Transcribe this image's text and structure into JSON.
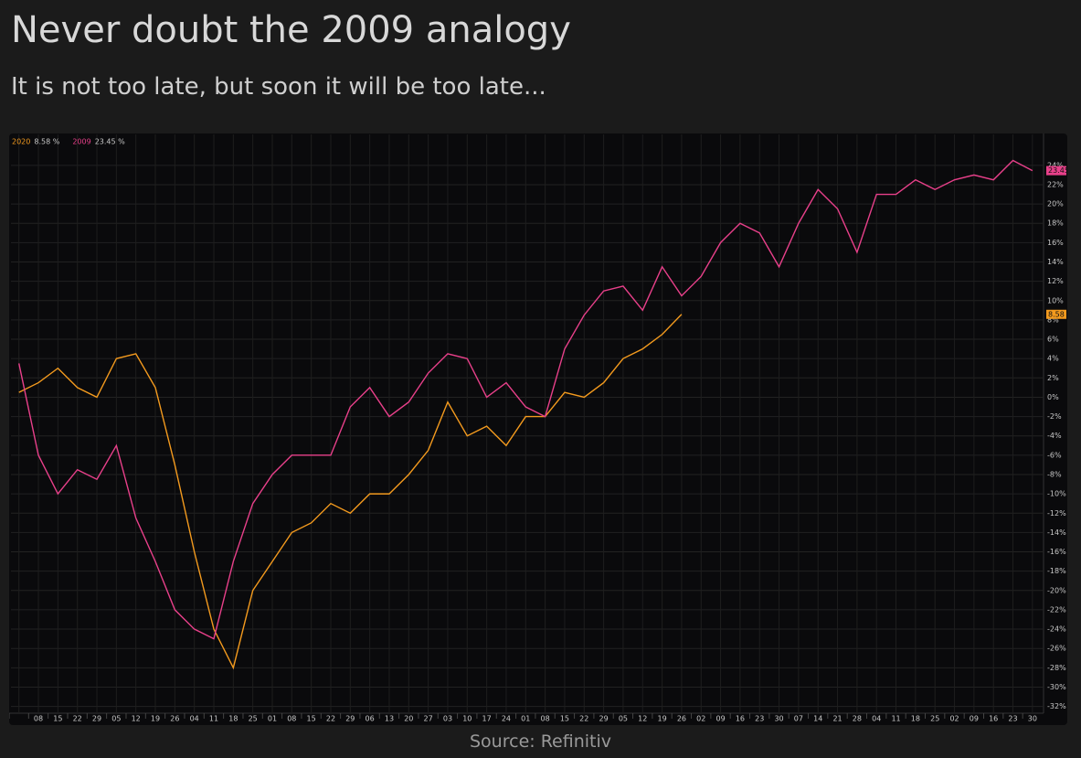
{
  "title": "Never doubt the 2009 analogy",
  "subtitle": "It is not too late, but soon it will be too late...",
  "source": "Source: Refinitiv",
  "chart_data": {
    "type": "line",
    "categories": [
      null,
      "08",
      "15",
      "22",
      "29",
      "05",
      "12",
      "19",
      "26",
      "04",
      "11",
      "18",
      "25",
      "01",
      "08",
      "15",
      "22",
      "29",
      "06",
      "13",
      "20",
      "27",
      "03",
      "10",
      "17",
      "24",
      "01",
      "08",
      "15",
      "22",
      "29",
      "05",
      "12",
      "19",
      "26",
      "02",
      "09",
      "16",
      "23",
      "30",
      "07",
      "14",
      "21",
      "28",
      "04",
      "11",
      "18",
      "25",
      "02",
      "09",
      "16",
      "23",
      "30"
    ],
    "series": [
      {
        "name": "2020",
        "color": "#f39a1e",
        "last_label": "8.58 %",
        "last_value": 8.58,
        "values": [
          0.5,
          1.5,
          3,
          1,
          0,
          4,
          4.5,
          1,
          -7,
          -16,
          -24,
          -28,
          -20,
          -17,
          -14,
          -13,
          -11,
          -12,
          -10,
          -10,
          -8,
          -5.5,
          -0.5,
          -4,
          -3,
          -5,
          -2,
          -2,
          0.5,
          0,
          1.5,
          4,
          5,
          6.5,
          8.58,
          null,
          null,
          null,
          null,
          null,
          null,
          null,
          null,
          null,
          null,
          null,
          null,
          null,
          null,
          null,
          null,
          null,
          null
        ]
      },
      {
        "name": "2009",
        "color": "#e8408a",
        "last_label": "23.45 %",
        "last_value": 23.45,
        "values": [
          3.5,
          -6,
          -10,
          -7.5,
          -8.5,
          -5,
          -12.5,
          -17,
          -22,
          -24,
          -25,
          -17,
          -11,
          -8,
          -6,
          -6,
          -6,
          -1,
          1,
          -2,
          -0.5,
          2.5,
          4.5,
          4,
          0,
          1.5,
          -1,
          -2,
          5,
          8.5,
          11,
          11.5,
          9,
          13.5,
          10.5,
          12.5,
          16,
          18,
          17,
          13.5,
          18,
          21.5,
          19.5,
          15,
          21,
          21,
          22.5,
          21.5,
          22.5,
          23,
          22.5,
          24.5,
          23.45
        ]
      }
    ],
    "ylim": [
      -32.7,
      27.2
    ],
    "yticks": [
      {
        "value": -32,
        "label": "-32%"
      },
      {
        "value": -30,
        "label": "-30%"
      },
      {
        "value": -28,
        "label": "-28%"
      },
      {
        "value": -26,
        "label": "-26%"
      },
      {
        "value": -24,
        "label": "-24%"
      },
      {
        "value": -22,
        "label": "-22%"
      },
      {
        "value": -20,
        "label": "-20%"
      },
      {
        "value": -18,
        "label": "-18%"
      },
      {
        "value": -16,
        "label": "-16%"
      },
      {
        "value": -14,
        "label": "-14%"
      },
      {
        "value": -12,
        "label": "-12%"
      },
      {
        "value": -10,
        "label": "-10%"
      },
      {
        "value": -8,
        "label": "-8%"
      },
      {
        "value": -6,
        "label": "-6%"
      },
      {
        "value": -4,
        "label": "-4%"
      },
      {
        "value": -2,
        "label": "-2%"
      },
      {
        "value": 0,
        "label": "0%"
      },
      {
        "value": 2,
        "label": "2%"
      },
      {
        "value": 4,
        "label": "4%"
      },
      {
        "value": 6,
        "label": "6%"
      },
      {
        "value": 8,
        "label": "8%"
      },
      {
        "value": 10,
        "label": "10%"
      },
      {
        "value": 12,
        "label": "12%"
      },
      {
        "value": 14,
        "label": "14%"
      },
      {
        "value": 16,
        "label": "16%"
      },
      {
        "value": 18,
        "label": "18%"
      },
      {
        "value": 20,
        "label": "20%"
      },
      {
        "value": 22,
        "label": "22%"
      },
      {
        "value": 24,
        "label": "24%"
      }
    ],
    "grid": true
  }
}
